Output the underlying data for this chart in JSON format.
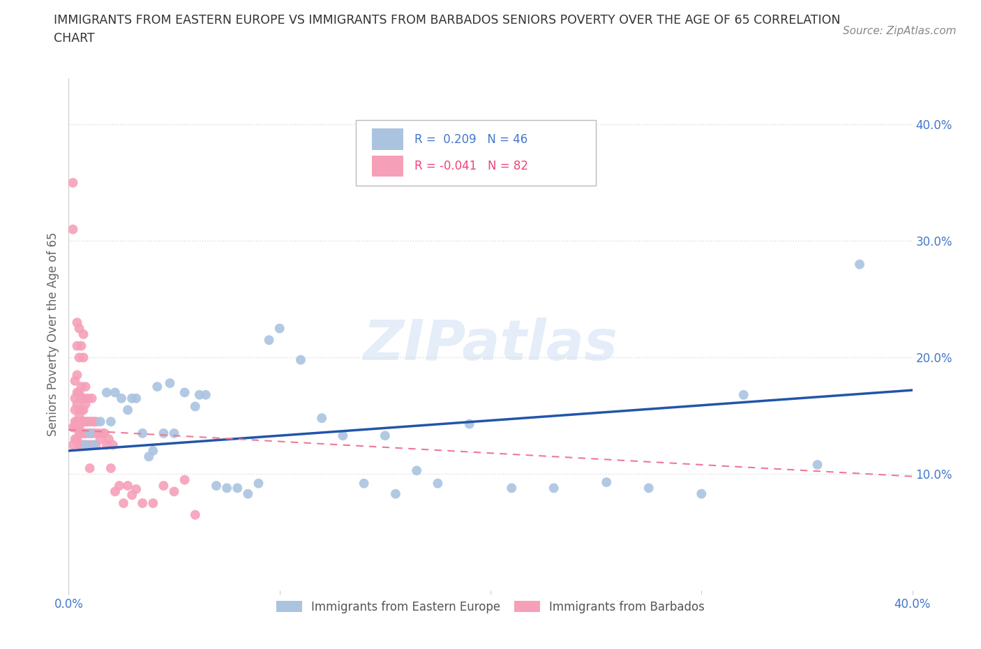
{
  "title_line1": "IMMIGRANTS FROM EASTERN EUROPE VS IMMIGRANTS FROM BARBADOS SENIORS POVERTY OVER THE AGE OF 65 CORRELATION",
  "title_line2": "CHART",
  "source_text": "Source: ZipAtlas.com",
  "ylabel": "Seniors Poverty Over the Age of 65",
  "xlim": [
    0.0,
    0.4
  ],
  "ylim": [
    0.0,
    0.44
  ],
  "ytick_values": [
    0.0,
    0.1,
    0.2,
    0.3,
    0.4
  ],
  "xtick_values": [
    0.0,
    0.1,
    0.2,
    0.3,
    0.4
  ],
  "grid_color": "#d8d8d8",
  "watermark": "ZIPatlas",
  "blue_color": "#aac4e0",
  "blue_line_color": "#2255aa",
  "pink_color": "#f5a0b8",
  "pink_line_color": "#ee7799",
  "blue_label": "Immigrants from Eastern Europe",
  "pink_label": "Immigrants from Barbados",
  "blue_R": 0.209,
  "blue_N": 46,
  "pink_R": -0.041,
  "pink_N": 82,
  "blue_x": [
    0.008,
    0.01,
    0.012,
    0.015,
    0.018,
    0.02,
    0.022,
    0.025,
    0.028,
    0.03,
    0.032,
    0.035,
    0.038,
    0.04,
    0.042,
    0.045,
    0.048,
    0.05,
    0.055,
    0.06,
    0.062,
    0.065,
    0.07,
    0.075,
    0.08,
    0.085,
    0.09,
    0.095,
    0.1,
    0.11,
    0.12,
    0.13,
    0.14,
    0.15,
    0.155,
    0.165,
    0.175,
    0.19,
    0.21,
    0.23,
    0.255,
    0.275,
    0.3,
    0.32,
    0.355,
    0.375
  ],
  "blue_y": [
    0.125,
    0.135,
    0.125,
    0.145,
    0.17,
    0.145,
    0.17,
    0.165,
    0.155,
    0.165,
    0.165,
    0.135,
    0.115,
    0.12,
    0.175,
    0.135,
    0.178,
    0.135,
    0.17,
    0.158,
    0.168,
    0.168,
    0.09,
    0.088,
    0.088,
    0.083,
    0.092,
    0.215,
    0.225,
    0.198,
    0.148,
    0.133,
    0.092,
    0.133,
    0.083,
    0.103,
    0.092,
    0.143,
    0.088,
    0.088,
    0.093,
    0.088,
    0.083,
    0.168,
    0.108,
    0.28
  ],
  "pink_x": [
    0.002,
    0.002,
    0.003,
    0.003,
    0.003,
    0.003,
    0.003,
    0.003,
    0.004,
    0.004,
    0.004,
    0.004,
    0.004,
    0.004,
    0.004,
    0.004,
    0.005,
    0.005,
    0.005,
    0.005,
    0.005,
    0.005,
    0.005,
    0.005,
    0.006,
    0.006,
    0.006,
    0.006,
    0.006,
    0.006,
    0.006,
    0.007,
    0.007,
    0.007,
    0.007,
    0.007,
    0.007,
    0.007,
    0.008,
    0.008,
    0.008,
    0.008,
    0.008,
    0.009,
    0.009,
    0.009,
    0.009,
    0.01,
    0.01,
    0.01,
    0.01,
    0.011,
    0.011,
    0.011,
    0.011,
    0.012,
    0.012,
    0.012,
    0.013,
    0.013,
    0.014,
    0.015,
    0.016,
    0.017,
    0.018,
    0.019,
    0.02,
    0.021,
    0.022,
    0.024,
    0.026,
    0.028,
    0.03,
    0.032,
    0.035,
    0.04,
    0.045,
    0.05,
    0.055,
    0.06,
    0.002,
    0.002
  ],
  "pink_y": [
    0.125,
    0.14,
    0.13,
    0.14,
    0.145,
    0.155,
    0.165,
    0.18,
    0.13,
    0.14,
    0.145,
    0.16,
    0.17,
    0.185,
    0.21,
    0.23,
    0.125,
    0.135,
    0.14,
    0.15,
    0.155,
    0.17,
    0.2,
    0.225,
    0.125,
    0.135,
    0.145,
    0.155,
    0.165,
    0.175,
    0.21,
    0.125,
    0.135,
    0.145,
    0.155,
    0.165,
    0.2,
    0.22,
    0.125,
    0.135,
    0.145,
    0.16,
    0.175,
    0.125,
    0.135,
    0.145,
    0.165,
    0.105,
    0.125,
    0.135,
    0.145,
    0.125,
    0.135,
    0.145,
    0.165,
    0.125,
    0.135,
    0.145,
    0.125,
    0.145,
    0.135,
    0.13,
    0.135,
    0.135,
    0.125,
    0.13,
    0.105,
    0.125,
    0.085,
    0.09,
    0.075,
    0.09,
    0.082,
    0.087,
    0.075,
    0.075,
    0.09,
    0.085,
    0.095,
    0.065,
    0.35,
    0.31
  ],
  "blue_line_x": [
    0.0,
    0.4
  ],
  "blue_line_y": [
    0.12,
    0.172
  ],
  "pink_line_x": [
    0.0,
    0.4
  ],
  "pink_line_y": [
    0.138,
    0.098
  ],
  "axis_color": "#4477cc",
  "legend_blue_color": "#4477cc",
  "legend_pink_color": "#ee4477",
  "title_color": "#333333",
  "ylabel_color": "#666666",
  "source_color": "#888888",
  "legend_text_color": "#555555",
  "title_fontsize": 12.5,
  "axis_fontsize": 12,
  "legend_fontsize": 12
}
